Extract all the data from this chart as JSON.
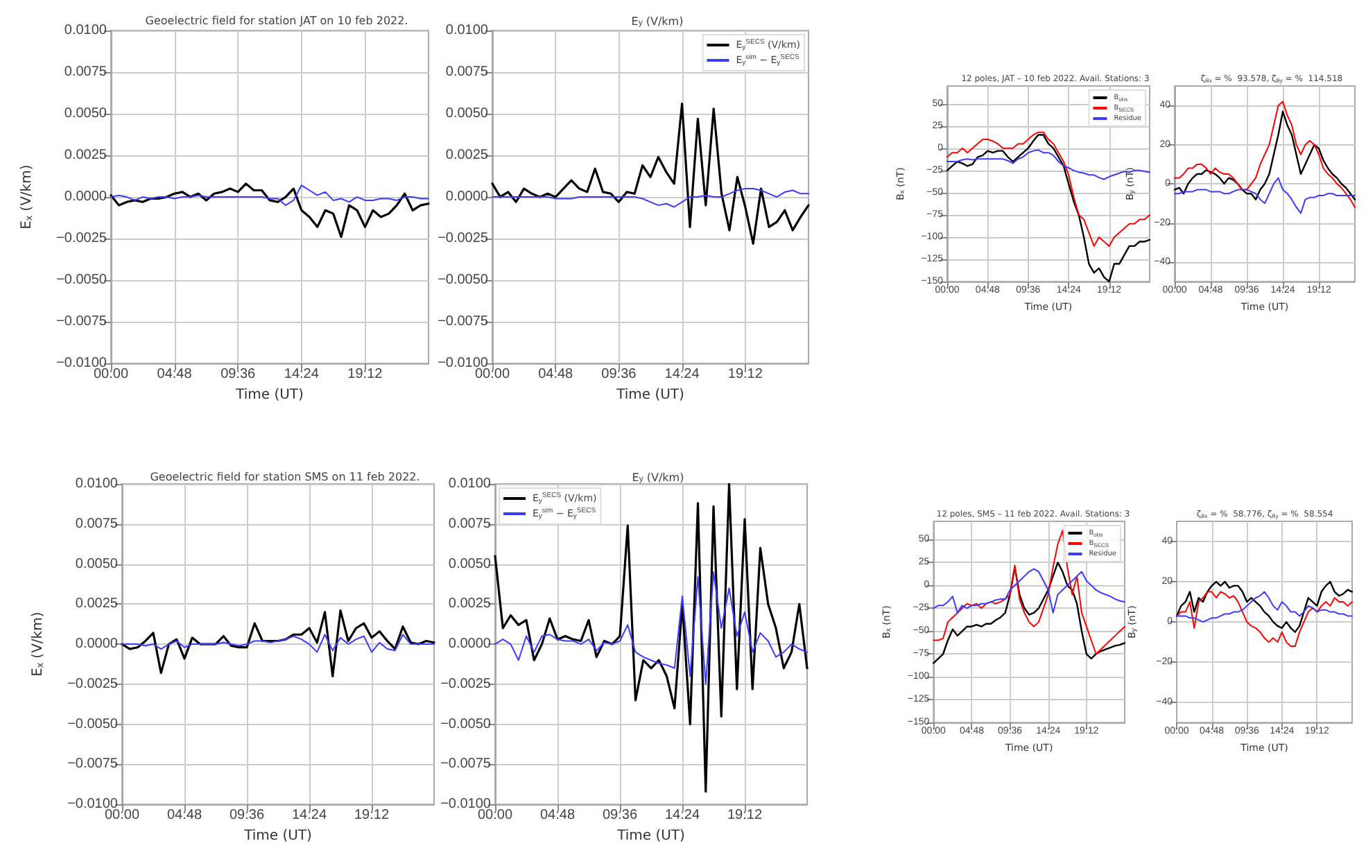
{
  "chart_data": [
    {
      "type": "line",
      "title": "Geoelectric field for station JAT on 10 feb 2022.",
      "xlabel": "Time (UT)",
      "ylabel": "E$_{x}$ (V/km)",
      "grid": true,
      "legend": false,
      "marker": "none",
      "line_style": "solid",
      "xlim": [
        0,
        24
      ],
      "xticks": [
        {
          "value": 0,
          "label": "00:00"
        },
        {
          "value": 4.8,
          "label": "04:48"
        },
        {
          "value": 9.6,
          "label": "09:36"
        },
        {
          "value": 14.4,
          "label": "14:24"
        },
        {
          "value": 19.2,
          "label": "19:12"
        }
      ],
      "ylim": [
        -0.01,
        0.01
      ],
      "yticks": [
        {
          "value": -0.01,
          "label": "−0.0100"
        },
        {
          "value": -0.0075,
          "label": "−0.0075"
        },
        {
          "value": -0.005,
          "label": "−0.0050"
        },
        {
          "value": -0.0025,
          "label": "−0.0025"
        },
        {
          "value": 0,
          "label": "0.0000"
        },
        {
          "value": 0.0025,
          "label": "0.0025"
        },
        {
          "value": 0.005,
          "label": "0.0050"
        },
        {
          "value": 0.0075,
          "label": "0.0075"
        },
        {
          "value": 0.01,
          "label": "0.0100"
        }
      ],
      "x": [
        0,
        0.6,
        1.2,
        1.8,
        2.4,
        3,
        3.6,
        4.2,
        4.8,
        5.4,
        6,
        6.6,
        7.2,
        7.8,
        8.4,
        9,
        9.6,
        10.2,
        10.8,
        11.4,
        12,
        12.6,
        13.2,
        13.8,
        14.4,
        15,
        15.6,
        16.2,
        16.8,
        17.4,
        18,
        18.6,
        19.2,
        19.8,
        20.4,
        21,
        21.6,
        22.2,
        22.8,
        23.4,
        24
      ],
      "series": [
        {
          "color": "#000000",
          "values": [
            0.0001,
            -0.0005,
            -0.0003,
            -0.0002,
            -0.0003,
            -0.0001,
            -0.0001,
            0,
            0.0002,
            0.0003,
            0,
            0.0002,
            -0.0002,
            0.0002,
            0.0003,
            0.0005,
            0.0003,
            0.0008,
            0.0004,
            0.0004,
            -0.0002,
            -0.0003,
            0,
            0.0005,
            -0.0008,
            -0.0012,
            -0.0018,
            -0.0008,
            -0.001,
            -0.0024,
            -0.0005,
            -0.0008,
            -0.0018,
            -0.0008,
            -0.0012,
            -0.001,
            -0.0005,
            0.0002,
            -0.0008,
            -0.0005,
            -0.0004
          ]
        },
        {
          "color": "#3b3bff",
          "values": [
            0,
            0.0001,
            0,
            -0.0002,
            0,
            -0.0001,
            0,
            0,
            -0.0001,
            0,
            0,
            0.0001,
            0,
            0,
            0,
            0,
            0,
            0,
            0,
            0,
            -0.0001,
            -0.0001,
            -0.0005,
            -0.0002,
            0.0007,
            0.0004,
            0.0001,
            0.0003,
            -0.0002,
            -0.0001,
            -0.0003,
            0,
            -0.0002,
            -0.0002,
            -0.0001,
            -0.0001,
            -0.0002,
            0,
            0,
            -0.0001,
            -0.0001
          ]
        }
      ]
    },
    {
      "type": "line",
      "title": "E$_{y}$ (V/km)",
      "xlabel": "Time (UT)",
      "grid": true,
      "legend": "top right",
      "marker": "none",
      "line_style": "solid",
      "xlim": [
        0,
        24
      ],
      "xticks": [
        {
          "value": 0,
          "label": "00:00"
        },
        {
          "value": 4.8,
          "label": "04:48"
        },
        {
          "value": 9.6,
          "label": "09:36"
        },
        {
          "value": 14.4,
          "label": "14:24"
        },
        {
          "value": 19.2,
          "label": "19:12"
        }
      ],
      "ylim": [
        -0.01,
        0.01
      ],
      "yticks": [
        {
          "value": -0.01,
          "label": "−0.0100"
        },
        {
          "value": -0.0075,
          "label": "−0.0075"
        },
        {
          "value": -0.005,
          "label": "−0.0050"
        },
        {
          "value": -0.0025,
          "label": "−0.0025"
        },
        {
          "value": 0,
          "label": "0.0000"
        },
        {
          "value": 0.0025,
          "label": "0.0025"
        },
        {
          "value": 0.005,
          "label": "0.0050"
        },
        {
          "value": 0.0075,
          "label": "0.0075"
        },
        {
          "value": 0.01,
          "label": "0.0100"
        }
      ],
      "x": [
        0,
        0.6,
        1.2,
        1.8,
        2.4,
        3,
        3.6,
        4.2,
        4.8,
        5.4,
        6,
        6.6,
        7.2,
        7.8,
        8.4,
        9,
        9.6,
        10.2,
        10.8,
        11.4,
        12,
        12.6,
        13.2,
        13.8,
        14.4,
        15,
        15.6,
        16.2,
        16.8,
        17.4,
        18,
        18.6,
        19.2,
        19.8,
        20.4,
        21,
        21.6,
        22.2,
        22.8,
        23.4,
        24
      ],
      "series": [
        {
          "name": "E$_{y}$$^{SECS}$ (V/km)",
          "color": "#000000",
          "values": [
            0.0008,
            0,
            0.0003,
            -0.0003,
            0.0005,
            0.0002,
            0,
            0.0002,
            0,
            0.0005,
            0.001,
            0.0005,
            0.0003,
            0.0017,
            0.0003,
            0.0002,
            -0.0003,
            0.0003,
            0.0002,
            0.0019,
            0.0012,
            0.0024,
            0.0015,
            0.0008,
            0.0056,
            -0.0018,
            0.0047,
            -0.0005,
            0.0053,
            0.0002,
            -0.002,
            0.0012,
            -0.0006,
            -0.0028,
            0.0005,
            -0.0018,
            -0.0015,
            -0.0008,
            -0.002,
            -0.0012,
            -0.0005
          ]
        },
        {
          "name": "E$_{y}$$^{sim}$ − E$_{y}$$^{SECS}$",
          "color": "#3b3bff",
          "values": [
            0,
            0,
            0,
            0,
            0,
            0,
            0,
            0,
            -0.0001,
            -0.0001,
            -0.0001,
            0,
            0,
            0,
            0,
            0,
            0,
            0,
            0,
            -0.0001,
            -0.0003,
            -0.0005,
            -0.0004,
            -0.0006,
            -0.0003,
            0,
            0,
            0.0001,
            0,
            0,
            0.0002,
            0.0004,
            0.0005,
            0.0005,
            0.0004,
            0.0002,
            0,
            0.0003,
            0.0004,
            0.0002,
            0.0002
          ]
        }
      ]
    },
    {
      "type": "line",
      "title": "Geoelectric field for station SMS on 11 feb 2022.",
      "xlabel": "Time (UT)",
      "ylabel": "E$_{x}$ (V/km)",
      "grid": true,
      "legend": false,
      "marker": "none",
      "line_style": "solid",
      "xlim": [
        0,
        24
      ],
      "xticks": [
        {
          "value": 0,
          "label": "00:00"
        },
        {
          "value": 4.8,
          "label": "04:48"
        },
        {
          "value": 9.6,
          "label": "09:36"
        },
        {
          "value": 14.4,
          "label": "14:24"
        },
        {
          "value": 19.2,
          "label": "19:12"
        }
      ],
      "ylim": [
        -0.01,
        0.01
      ],
      "yticks": [
        {
          "value": -0.01,
          "label": "−0.0100"
        },
        {
          "value": -0.0075,
          "label": "−0.0075"
        },
        {
          "value": -0.005,
          "label": "−0.0050"
        },
        {
          "value": -0.0025,
          "label": "−0.0025"
        },
        {
          "value": 0,
          "label": "0.0000"
        },
        {
          "value": 0.0025,
          "label": "0.0025"
        },
        {
          "value": 0.005,
          "label": "0.0050"
        },
        {
          "value": 0.0075,
          "label": "0.0075"
        },
        {
          "value": 0.01,
          "label": "0.0100"
        }
      ],
      "x": [
        0,
        0.6,
        1.2,
        1.8,
        2.4,
        3,
        3.6,
        4.2,
        4.8,
        5.4,
        6,
        6.6,
        7.2,
        7.8,
        8.4,
        9,
        9.6,
        10.2,
        10.8,
        11.4,
        12,
        12.6,
        13.2,
        13.8,
        14.4,
        15,
        15.6,
        16.2,
        16.8,
        17.4,
        18,
        18.6,
        19.2,
        19.8,
        20.4,
        21,
        21.6,
        22.2,
        22.8,
        23.4,
        24
      ],
      "series": [
        {
          "color": "#000000",
          "values": [
            0,
            -0.0003,
            -0.0002,
            0.0002,
            0.0007,
            -0.0018,
            0,
            0.0003,
            -0.0009,
            0.0004,
            0,
            0,
            0,
            0.0005,
            -0.0001,
            -0.0002,
            -0.0002,
            0.0013,
            0.0002,
            0.0002,
            0.0002,
            0.0003,
            0.0006,
            0.0006,
            0.001,
            0.0001,
            0.002,
            -0.002,
            0.0021,
            0.0002,
            0.001,
            0.0013,
            0.0004,
            0.0008,
            0.0002,
            -0.0003,
            0.0011,
            0.0001,
            0,
            0.0002,
            0.0001
          ]
        },
        {
          "color": "#3b3bff",
          "values": [
            0,
            0,
            0,
            -0.0001,
            0,
            -0.0003,
            0,
            0.0002,
            -0.0002,
            0,
            0,
            0,
            0,
            0.0001,
            0,
            -0.0001,
            0,
            0.0002,
            0.0002,
            0.0001,
            0.0002,
            0.0003,
            0.0005,
            0.0003,
            0,
            -0.0005,
            0.0006,
            -0.0004,
            0.0004,
            0,
            0.0003,
            0.0005,
            -0.0005,
            0.0001,
            -0.0003,
            -0.0004,
            0.0006,
            0,
            0,
            0,
            0
          ]
        }
      ]
    },
    {
      "type": "line",
      "title": "E$_{y}$ (V/km)",
      "xlabel": "Time (UT)",
      "grid": true,
      "legend": "top left",
      "marker": "none",
      "line_style": "solid",
      "xlim": [
        0,
        24
      ],
      "xticks": [
        {
          "value": 0,
          "label": "00:00"
        },
        {
          "value": 4.8,
          "label": "04:48"
        },
        {
          "value": 9.6,
          "label": "09:36"
        },
        {
          "value": 14.4,
          "label": "14:24"
        },
        {
          "value": 19.2,
          "label": "19:12"
        }
      ],
      "ylim": [
        -0.01,
        0.01
      ],
      "yticks": [
        {
          "value": -0.01,
          "label": "−0.0100"
        },
        {
          "value": -0.0075,
          "label": "−0.0075"
        },
        {
          "value": -0.005,
          "label": "−0.0050"
        },
        {
          "value": -0.0025,
          "label": "−0.0025"
        },
        {
          "value": 0,
          "label": "0.0000"
        },
        {
          "value": 0.0025,
          "label": "0.0025"
        },
        {
          "value": 0.005,
          "label": "0.0050"
        },
        {
          "value": 0.0075,
          "label": "0.0075"
        },
        {
          "value": 0.01,
          "label": "0.0100"
        }
      ],
      "x": [
        0,
        0.6,
        1.2,
        1.8,
        2.4,
        3,
        3.6,
        4.2,
        4.8,
        5.4,
        6,
        6.6,
        7.2,
        7.8,
        8.4,
        9,
        9.6,
        10.2,
        10.8,
        11.4,
        12,
        12.6,
        13.2,
        13.8,
        14.4,
        15,
        15.6,
        16.2,
        16.8,
        17.4,
        18,
        18.6,
        19.2,
        19.8,
        20.4,
        21,
        21.6,
        22.2,
        22.8,
        23.4,
        24
      ],
      "series": [
        {
          "name": "E$_{y}$$^{SECS}$ (V/km)",
          "color": "#000000",
          "values": [
            0.0055,
            0.001,
            0.0018,
            0.0012,
            0.0015,
            -0.001,
            0,
            0.0016,
            0.0003,
            0.0005,
            0.0003,
            0.0002,
            0.0015,
            -0.0008,
            0.0002,
            0,
            0.0005,
            0.0074,
            -0.0035,
            -0.001,
            -0.0015,
            -0.001,
            -0.002,
            -0.004,
            0.0025,
            -0.005,
            0.0088,
            -0.0092,
            0.0086,
            -0.0045,
            0.01,
            -0.0028,
            0.0078,
            -0.0028,
            0.006,
            0.0025,
            0.001,
            -0.0015,
            -0.0005,
            0.0025,
            -0.0015
          ]
        },
        {
          "name": "E$_{y}$$^{sim}$ − E$_{y}$$^{SECS}$",
          "color": "#3b3bff",
          "values": [
            0,
            0.0003,
            0,
            -0.001,
            0.0005,
            -0.0005,
            0.0005,
            0.0006,
            0.0003,
            0.0002,
            0.0002,
            0,
            0.0003,
            -0.0004,
            0.0001,
            0,
            0.0002,
            0.0012,
            -0.0005,
            -0.0008,
            -0.001,
            -0.0012,
            -0.0013,
            -0.0015,
            0.003,
            -0.002,
            0.0042,
            -0.0025,
            0.0045,
            0.001,
            0.0035,
            0.0005,
            0.002,
            -0.0005,
            0.0007,
            0.0002,
            -0.0008,
            -0.0005,
            0,
            -0.0003,
            -0.0005
          ]
        }
      ]
    },
    {
      "type": "line",
      "title": "12 poles, JAT – 10 feb 2022. Avail. Stations: 3",
      "xlabel": "Time (UT)",
      "ylabel": "B$_{x}$ (nT)",
      "grid": true,
      "legend": "top right",
      "marker": "none",
      "line_style": "solid",
      "xlim": [
        0,
        24
      ],
      "xticks": [
        {
          "value": 0,
          "label": "00:00"
        },
        {
          "value": 4.8,
          "label": "04:48"
        },
        {
          "value": 9.6,
          "label": "09:36"
        },
        {
          "value": 14.4,
          "label": "14:24"
        },
        {
          "value": 19.2,
          "label": "19:12"
        }
      ],
      "ylim": [
        -150,
        70
      ],
      "yticks": [
        {
          "value": -150,
          "label": "−150"
        },
        {
          "value": -125,
          "label": "−125"
        },
        {
          "value": -100,
          "label": "−100"
        },
        {
          "value": -75,
          "label": "−75"
        },
        {
          "value": -50,
          "label": "−50"
        },
        {
          "value": -25,
          "label": "−25"
        },
        0,
        25,
        50
      ],
      "x": [
        0,
        0.6,
        1.2,
        1.8,
        2.4,
        3,
        3.6,
        4.2,
        4.8,
        5.4,
        6,
        6.6,
        7.2,
        7.8,
        8.4,
        9,
        9.6,
        10.2,
        10.8,
        11.4,
        12,
        12.6,
        13.2,
        13.8,
        14.4,
        15,
        15.6,
        16.2,
        16.8,
        17.4,
        18,
        18.6,
        19.2,
        19.8,
        20.4,
        21,
        21.6,
        22.2,
        22.8,
        23.4,
        24
      ],
      "series": [
        {
          "name": "B$_{obs}$",
          "color": "#000000",
          "values": [
            -25,
            -20,
            -15,
            -17,
            -20,
            -18,
            -10,
            -8,
            -3,
            -5,
            -3,
            -3,
            -10,
            -15,
            -10,
            -5,
            0,
            8,
            15,
            15,
            5,
            0,
            -10,
            -20,
            -40,
            -60,
            -75,
            -100,
            -130,
            -140,
            -135,
            -145,
            -150,
            -130,
            -130,
            -120,
            -110,
            -110,
            -105,
            -105,
            -103
          ]
        },
        {
          "name": "B$_{SECS}$",
          "color": "#ff0000",
          "values": [
            -10,
            -5,
            -5,
            0,
            -5,
            0,
            5,
            10,
            10,
            8,
            5,
            0,
            0,
            0,
            5,
            5,
            10,
            15,
            18,
            18,
            10,
            5,
            -5,
            -15,
            -30,
            -55,
            -75,
            -80,
            -95,
            -110,
            -100,
            -105,
            -110,
            -100,
            -95,
            -90,
            -85,
            -85,
            -80,
            -80,
            -75
          ]
        },
        {
          "name": "Residue",
          "color": "#3b3bff",
          "values": [
            -15,
            -15,
            -15,
            -13,
            -12,
            -13,
            -12,
            -12,
            -12,
            -12,
            -12,
            -12,
            -14,
            -17,
            -12,
            -10,
            -5,
            -3,
            -2,
            -5,
            -5,
            -8,
            -15,
            -20,
            -22,
            -25,
            -27,
            -28,
            -30,
            -30,
            -33,
            -35,
            -32,
            -30,
            -28,
            -26,
            -27,
            -25,
            -25,
            -26,
            -27
          ]
        }
      ]
    },
    {
      "type": "line",
      "title": "ζ$_{Bx}$ = %  93.578, ζ$_{By}$ = %  114.518",
      "xlabel": "Time (UT)",
      "ylabel": "B$_{y}$ (nT)",
      "grid": true,
      "legend": false,
      "marker": "none",
      "line_style": "solid",
      "xlim": [
        0,
        24
      ],
      "xticks": [
        {
          "value": 0,
          "label": "00:00"
        },
        {
          "value": 4.8,
          "label": "04:48"
        },
        {
          "value": 9.6,
          "label": "09:36"
        },
        {
          "value": 14.4,
          "label": "14:24"
        },
        {
          "value": 19.2,
          "label": "19:12"
        }
      ],
      "ylim": [
        -50,
        50
      ],
      "yticks": [
        {
          "value": -40,
          "label": "−40"
        },
        {
          "value": -20,
          "label": "−20"
        },
        0,
        20,
        40
      ],
      "x": [
        0,
        0.6,
        1.2,
        1.8,
        2.4,
        3,
        3.6,
        4.2,
        4.8,
        5.4,
        6,
        6.6,
        7.2,
        7.8,
        8.4,
        9,
        9.6,
        10.2,
        10.8,
        11.4,
        12,
        12.6,
        13.2,
        13.8,
        14.4,
        15,
        15.6,
        16.2,
        16.8,
        17.4,
        18,
        18.6,
        19.2,
        19.8,
        20.4,
        21,
        21.6,
        22.2,
        22.8,
        23.4,
        24
      ],
      "series": [
        {
          "color": "#000000",
          "values": [
            -3,
            -2,
            -5,
            0,
            3,
            5,
            5,
            7,
            6,
            5,
            3,
            0,
            3,
            2,
            0,
            -3,
            -5,
            -5,
            -8,
            -3,
            0,
            5,
            15,
            25,
            37,
            30,
            25,
            15,
            5,
            10,
            15,
            20,
            18,
            12,
            8,
            5,
            3,
            0,
            -2,
            -5,
            -8
          ]
        },
        {
          "color": "#ff0000",
          "values": [
            3,
            3,
            5,
            8,
            8,
            10,
            10,
            8,
            5,
            8,
            6,
            5,
            5,
            3,
            0,
            -3,
            -3,
            0,
            3,
            10,
            15,
            20,
            30,
            40,
            42,
            35,
            30,
            20,
            15,
            20,
            22,
            20,
            15,
            8,
            5,
            3,
            0,
            -2,
            -5,
            -8,
            -12
          ]
        },
        {
          "color": "#3b3bff",
          "values": [
            -5,
            -5,
            -4,
            -4,
            -4,
            -3,
            -3,
            -3,
            -4,
            -4,
            -4,
            -5,
            -5,
            -4,
            -3,
            -3,
            -3,
            -4,
            -5,
            -8,
            -10,
            -5,
            0,
            3,
            -3,
            -5,
            -8,
            -12,
            -15,
            -8,
            -7,
            -7,
            -6,
            -6,
            -5,
            -5,
            -6,
            -6,
            -6,
            -6,
            -6
          ]
        }
      ]
    },
    {
      "type": "line",
      "title": "12 poles, SMS – 11 feb 2022. Avail. Stations: 3",
      "xlabel": "Time (UT)",
      "ylabel": "B$_{x}$ (nT)",
      "grid": true,
      "legend": "top right",
      "marker": "none",
      "line_style": "solid",
      "xlim": [
        0,
        24
      ],
      "xticks": [
        {
          "value": 0,
          "label": "00:00"
        },
        {
          "value": 4.8,
          "label": "04:48"
        },
        {
          "value": 9.6,
          "label": "09:36"
        },
        {
          "value": 14.4,
          "label": "14:24"
        },
        {
          "value": 19.2,
          "label": "19:12"
        }
      ],
      "ylim": [
        -150,
        70
      ],
      "yticks": [
        {
          "value": -150,
          "label": "−150"
        },
        {
          "value": -125,
          "label": "−125"
        },
        {
          "value": -100,
          "label": "−100"
        },
        {
          "value": -75,
          "label": "−75"
        },
        {
          "value": -50,
          "label": "−50"
        },
        {
          "value": -25,
          "label": "−25"
        },
        0,
        25,
        50
      ],
      "x": [
        0,
        0.6,
        1.2,
        1.8,
        2.4,
        3,
        3.6,
        4.2,
        4.8,
        5.4,
        6,
        6.6,
        7.2,
        7.8,
        8.4,
        9,
        9.6,
        10.2,
        10.8,
        11.4,
        12,
        12.6,
        13.2,
        13.8,
        14.4,
        15,
        15.6,
        16.2,
        16.8,
        17.4,
        18,
        18.6,
        19.2,
        19.8,
        20.4,
        21,
        21.6,
        22.2,
        22.8,
        23.4,
        24
      ],
      "series": [
        {
          "name": "B$_{obs}$",
          "color": "#000000",
          "values": [
            -85,
            -80,
            -75,
            -60,
            -48,
            -55,
            -50,
            -45,
            -45,
            -43,
            -45,
            -42,
            -42,
            -38,
            -35,
            -30,
            -10,
            20,
            -10,
            -25,
            -32,
            -30,
            -25,
            -15,
            -5,
            10,
            25,
            15,
            0,
            -5,
            -20,
            -50,
            -75,
            -80,
            -75,
            -72,
            -70,
            -68,
            -66,
            -65,
            -63
          ]
        },
        {
          "name": "B$_{SECS}$",
          "color": "#ff0000",
          "values": [
            -60,
            -60,
            -58,
            -40,
            -35,
            -30,
            -25,
            -20,
            -22,
            -20,
            -25,
            -20,
            -18,
            -20,
            -18,
            -15,
            -10,
            22,
            -15,
            -30,
            -40,
            -45,
            -40,
            -25,
            -10,
            20,
            45,
            60,
            20,
            -10,
            10,
            -30,
            -45,
            -60,
            -75,
            -70,
            -65,
            -60,
            -55,
            -50,
            -45
          ]
        },
        {
          "name": "Residue",
          "color": "#3b3bff",
          "values": [
            -25,
            -22,
            -22,
            -18,
            -12,
            -30,
            -22,
            -25,
            -22,
            -22,
            -20,
            -20,
            -18,
            -16,
            -15,
            -15,
            -5,
            0,
            5,
            10,
            15,
            18,
            15,
            5,
            -5,
            -30,
            -10,
            -5,
            0,
            5,
            10,
            15,
            5,
            0,
            -5,
            -8,
            -10,
            -12,
            -15,
            -17,
            -18
          ]
        }
      ]
    },
    {
      "type": "line",
      "title": "ζ$_{Bx}$ = %  58.776, ζ$_{By}$ = %  58.554",
      "xlabel": "Time (UT)",
      "ylabel": "B$_{y}$ (nT)",
      "grid": true,
      "legend": false,
      "marker": "none",
      "line_style": "solid",
      "xlim": [
        0,
        24
      ],
      "xticks": [
        {
          "value": 0,
          "label": "00:00"
        },
        {
          "value": 4.8,
          "label": "04:48"
        },
        {
          "value": 9.6,
          "label": "09:36"
        },
        {
          "value": 14.4,
          "label": "14:24"
        },
        {
          "value": 19.2,
          "label": "19:12"
        }
      ],
      "ylim": [
        -50,
        50
      ],
      "yticks": [
        {
          "value": -40,
          "label": "−40"
        },
        {
          "value": -20,
          "label": "−20"
        },
        0,
        20,
        40
      ],
      "x": [
        0,
        0.6,
        1.2,
        1.8,
        2.4,
        3,
        3.6,
        4.2,
        4.8,
        5.4,
        6,
        6.6,
        7.2,
        7.8,
        8.4,
        9,
        9.6,
        10.2,
        10.8,
        11.4,
        12,
        12.6,
        13.2,
        13.8,
        14.4,
        15,
        15.6,
        16.2,
        16.8,
        17.4,
        18,
        18.6,
        19.2,
        19.8,
        20.4,
        21,
        21.6,
        22.2,
        22.8,
        23.4,
        24
      ],
      "series": [
        {
          "color": "#000000",
          "values": [
            3,
            8,
            10,
            15,
            5,
            12,
            10,
            15,
            18,
            20,
            18,
            20,
            17,
            18,
            18,
            15,
            10,
            12,
            10,
            8,
            5,
            3,
            0,
            -2,
            -3,
            0,
            -3,
            -5,
            -2,
            5,
            12,
            10,
            8,
            15,
            18,
            20,
            15,
            13,
            14,
            16,
            15
          ]
        },
        {
          "color": "#ff0000",
          "values": [
            3,
            5,
            5,
            10,
            -3,
            10,
            12,
            15,
            15,
            12,
            15,
            14,
            12,
            13,
            10,
            5,
            0,
            -2,
            -3,
            -5,
            -8,
            -10,
            -8,
            -10,
            -5,
            -10,
            -12,
            -12,
            -5,
            0,
            5,
            7,
            5,
            8,
            10,
            8,
            12,
            10,
            10,
            8,
            10
          ]
        },
        {
          "color": "#3b3bff",
          "values": [
            3,
            3,
            3,
            2,
            2,
            1,
            0,
            1,
            2,
            2,
            3,
            4,
            4,
            5,
            5,
            6,
            8,
            10,
            12,
            13,
            15,
            12,
            8,
            6,
            10,
            8,
            5,
            5,
            3,
            5,
            8,
            7,
            5,
            6,
            6,
            5,
            5,
            4,
            4,
            3,
            3
          ]
        }
      ]
    }
  ]
}
